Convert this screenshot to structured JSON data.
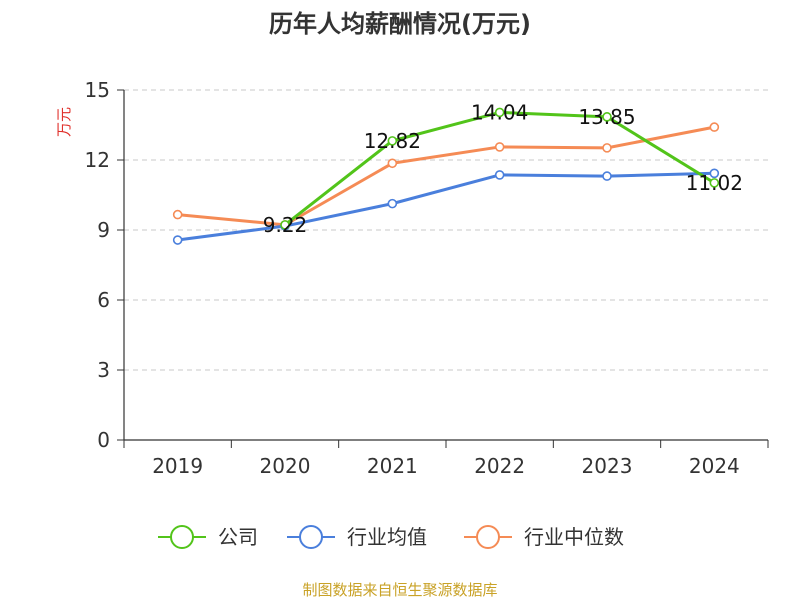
{
  "chart_data": {
    "type": "line",
    "title": "历年人均薪酬情况(万元)",
    "ylabel": "万元",
    "ylim": [
      0,
      15
    ],
    "yticks": [
      0,
      3,
      6,
      9,
      12,
      15
    ],
    "categories": [
      "2019",
      "2020",
      "2021",
      "2022",
      "2023",
      "2024"
    ],
    "grid": true,
    "legend_position": "bottom",
    "series": [
      {
        "name": "公司",
        "color": "#52c41a",
        "values": [
          null,
          9.22,
          12.82,
          14.04,
          13.85,
          11.02
        ],
        "labels": [
          null,
          "9.22",
          "12.82",
          "14.04",
          "13.85",
          "11.02"
        ]
      },
      {
        "name": "行业均值",
        "color": "#4a7fdc",
        "values": [
          8.57,
          9.17,
          10.13,
          11.36,
          11.31,
          11.43
        ]
      },
      {
        "name": "行业中位数",
        "color": "#f58b55",
        "values": [
          9.66,
          9.22,
          11.86,
          12.56,
          12.52,
          13.41
        ]
      }
    ]
  },
  "footer": {
    "source": "制图数据来自恒生聚源数据库"
  }
}
